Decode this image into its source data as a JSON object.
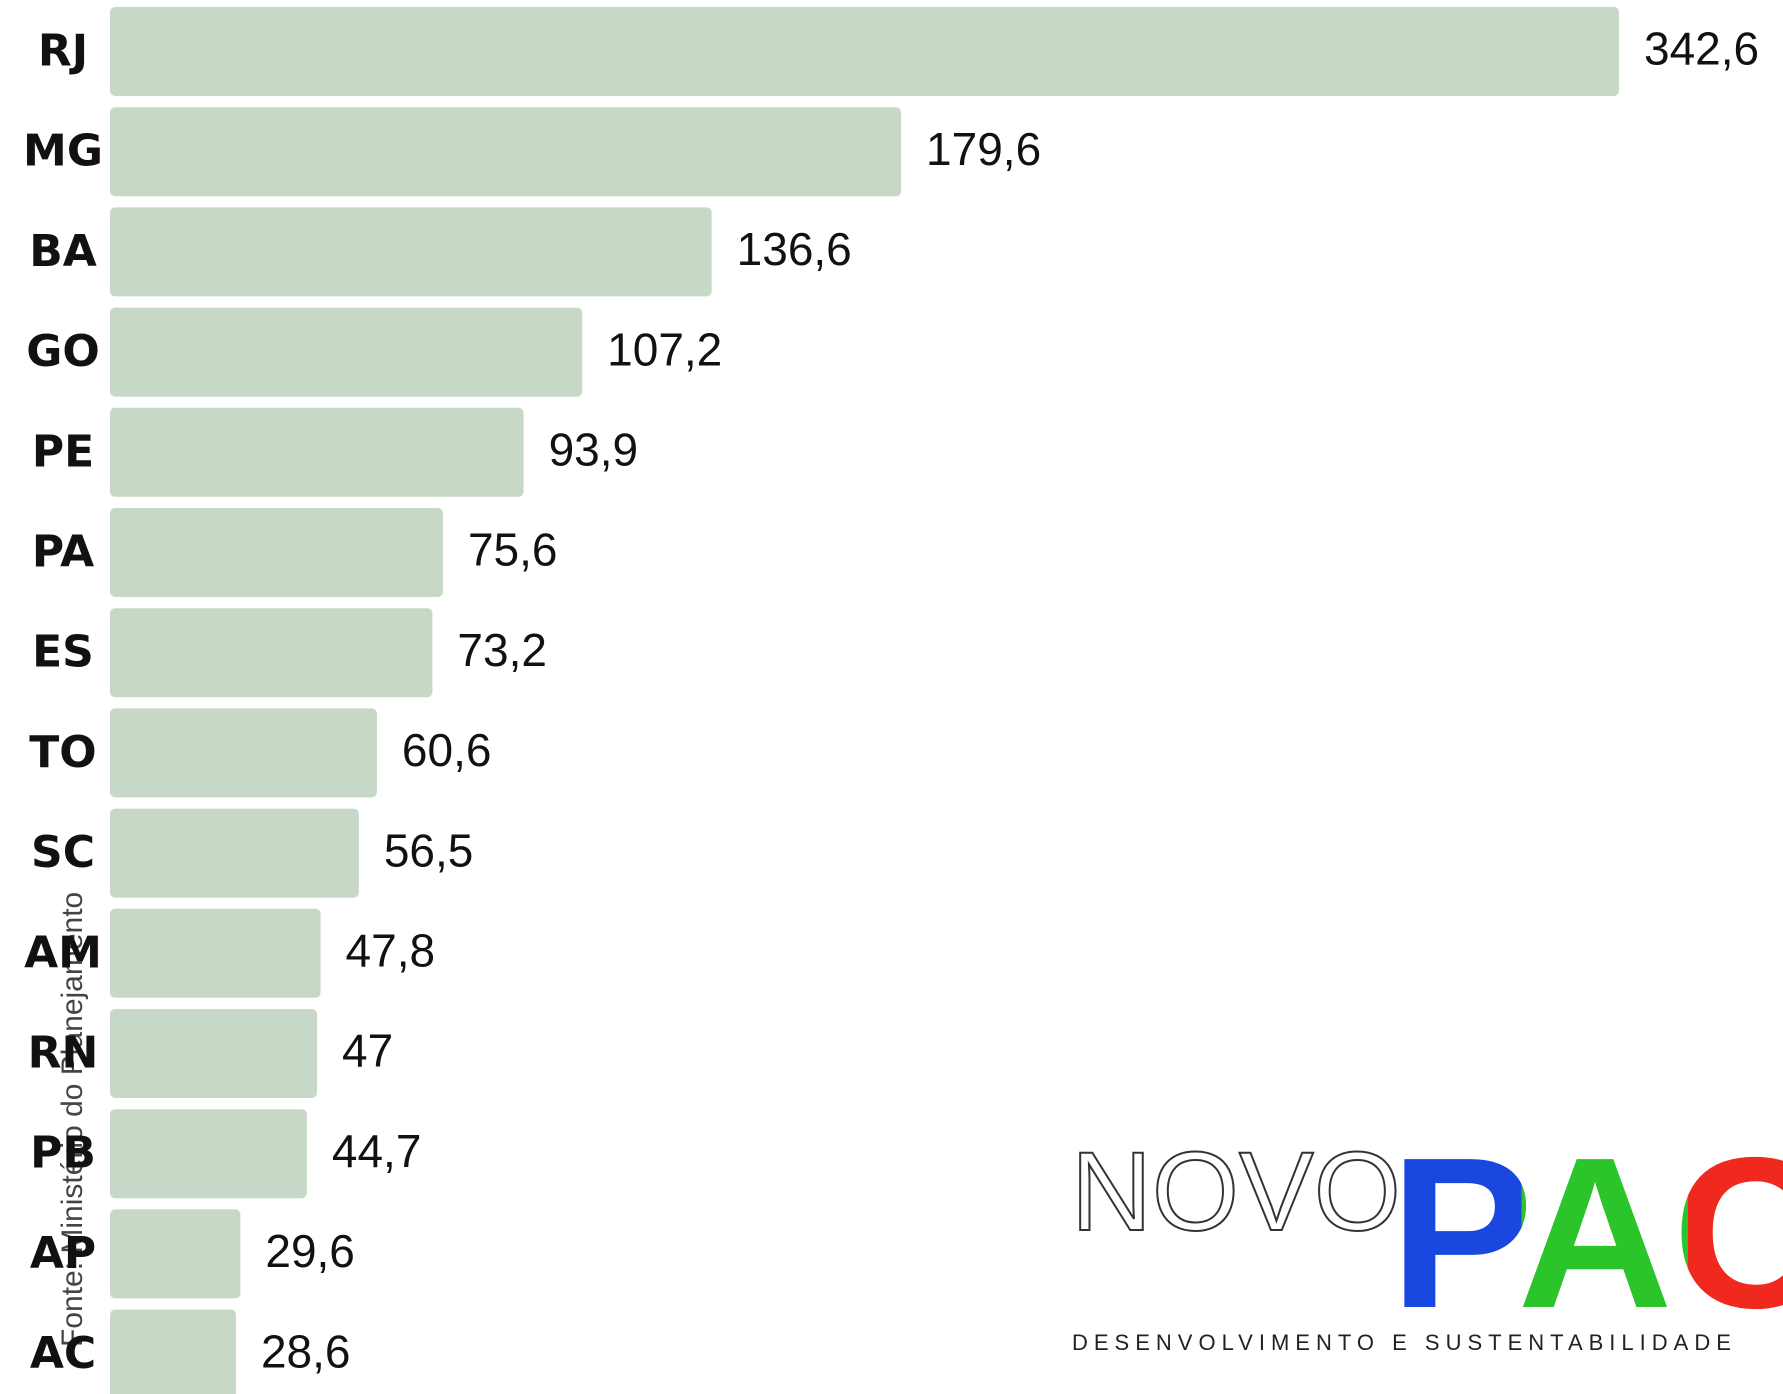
{
  "chart_data": {
    "type": "hbar",
    "categories": [
      "RJ",
      "MG",
      "BA",
      "GO",
      "PE",
      "PA",
      "ES",
      "TO",
      "SC",
      "AM",
      "RN",
      "PB",
      "AP",
      "AC"
    ],
    "values": [
      342.6,
      179.6,
      136.6,
      107.2,
      93.9,
      75.6,
      73.2,
      60.6,
      56.5,
      47.8,
      47,
      44.7,
      29.6,
      28.6
    ],
    "value_labels": [
      "342,6",
      "179,6",
      "136,6",
      "107,2",
      "93,9",
      "75,6",
      "73,2",
      "60,6",
      "56,5",
      "47,8",
      "47",
      "44,7",
      "29,6",
      "28,6"
    ],
    "color": "#c8d8c6",
    "source": "Fonte: Ministério do Planejamento"
  },
  "logo": {
    "novo": "NOVO",
    "pac": "PAC",
    "tagline": "DESENVOLVIMENTO E SUSTENTABILIDADE"
  }
}
